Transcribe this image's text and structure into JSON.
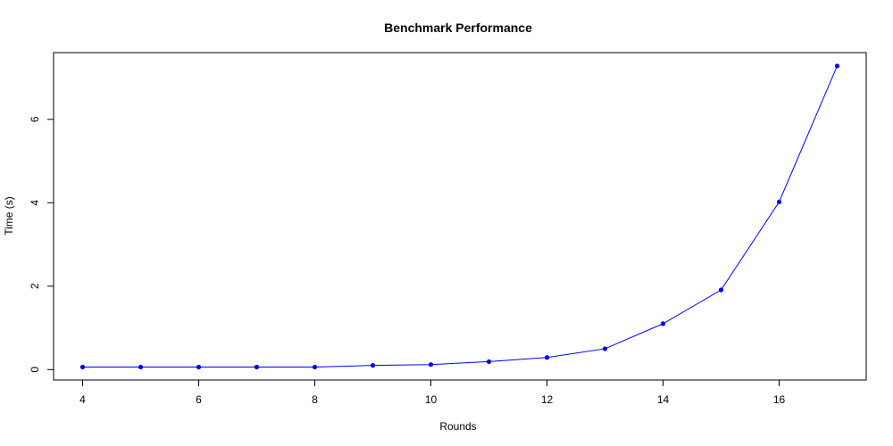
{
  "chart_data": {
    "type": "line",
    "title": "Benchmark Performance",
    "xlabel": "Rounds",
    "ylabel": "Time (s)",
    "xlim": [
      3.5,
      17.5
    ],
    "ylim": [
      -0.25,
      7.6
    ],
    "x_ticks": [
      4,
      6,
      8,
      10,
      12,
      14,
      16
    ],
    "y_ticks": [
      0,
      2,
      4,
      6
    ],
    "grid": false,
    "series": [
      {
        "color": "#0000ff",
        "markers": true,
        "x": [
          4,
          5,
          6,
          7,
          8,
          9,
          10,
          11,
          12,
          13,
          14,
          15,
          16,
          17
        ],
        "y": [
          0.06,
          0.06,
          0.06,
          0.06,
          0.06,
          0.1,
          0.12,
          0.19,
          0.29,
          0.5,
          1.1,
          1.91,
          4.02,
          7.28
        ]
      }
    ]
  }
}
